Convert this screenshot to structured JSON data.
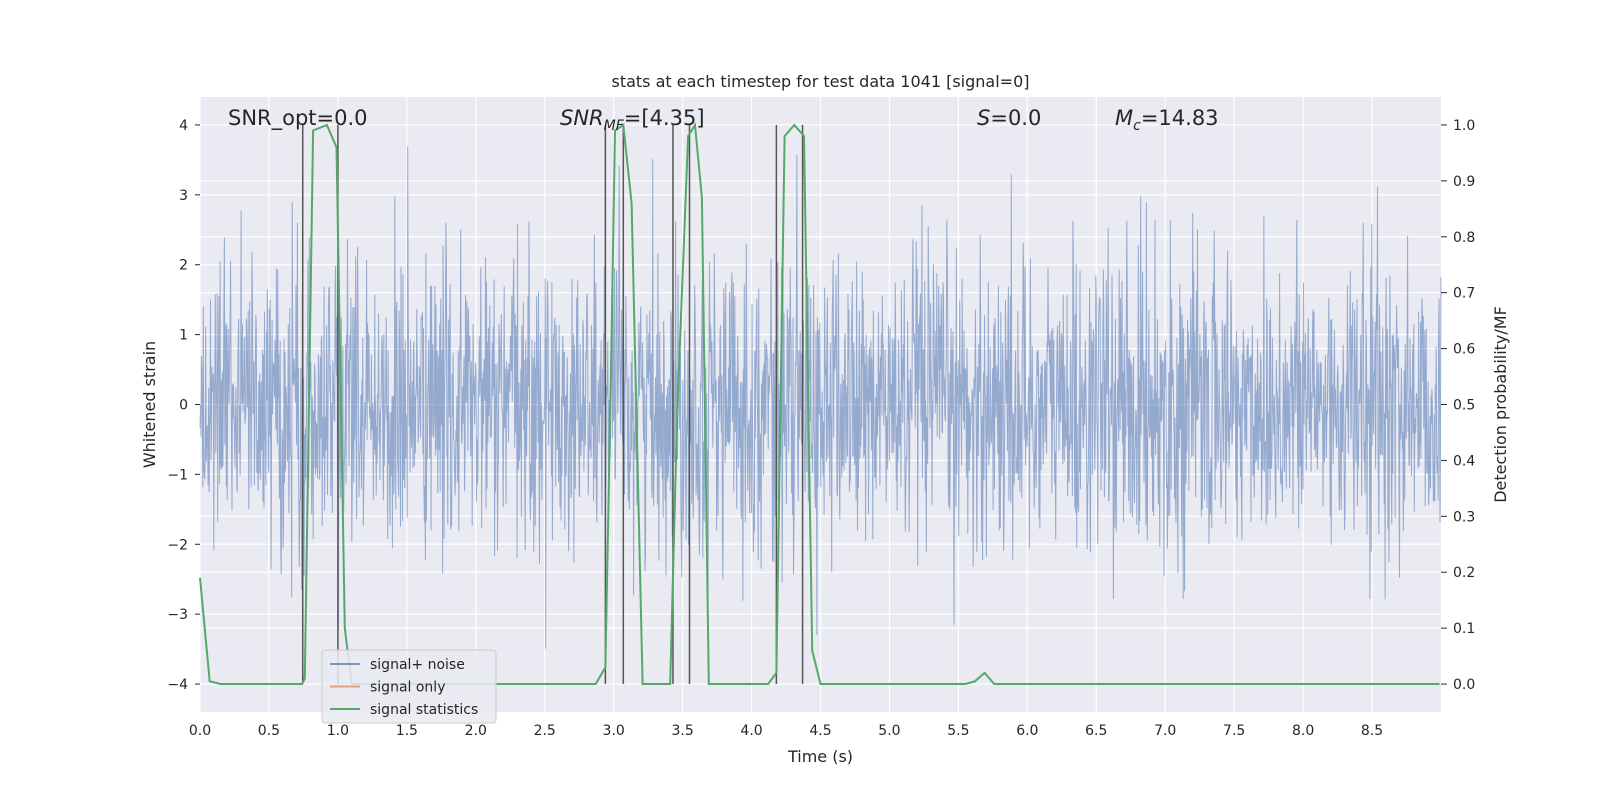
{
  "chart_data": {
    "type": "line",
    "title": "stats at each timestep for test data 1041 [signal=0]",
    "xlabel": "Time (s)",
    "ylabel": "Whitened strain",
    "y2label": "Detection probability/MF",
    "xlim": [
      0.0,
      9.0
    ],
    "ylim": [
      -4.4,
      4.4
    ],
    "y2lim": [
      -0.05,
      1.05
    ],
    "xticks": [
      "0.0",
      "0.5",
      "1.0",
      "1.5",
      "2.0",
      "2.5",
      "3.0",
      "3.5",
      "4.0",
      "4.5",
      "5.0",
      "5.5",
      "6.0",
      "6.5",
      "7.0",
      "7.5",
      "8.0",
      "8.5"
    ],
    "yticks": [
      "4",
      "3",
      "2",
      "1",
      "0",
      "−1",
      "−2",
      "−3",
      "−4"
    ],
    "y2ticks": [
      "1.0",
      "0.9",
      "0.8",
      "0.7",
      "0.6",
      "0.5",
      "0.4",
      "0.3",
      "0.2",
      "0.1",
      "0.0"
    ],
    "grid": true,
    "legend_position": "lower-left",
    "annotations": {
      "snr_opt": "SNR_opt=0.0",
      "snr_mf_italic": "SNR",
      "snr_mf_sub": "MF",
      "snr_mf_value": "=[4.35]",
      "s_italic": "S",
      "s_value": "=0.0",
      "mc_italic": "M",
      "mc_sub": "c",
      "mc_value": "=14.83"
    },
    "series": [
      {
        "name": "signal+ noise",
        "color": "#4c72b0",
        "note_envelope": {
          "typical_amplitude": 1.6,
          "peak_amplitude": 4.0
        },
        "points": "dense noise"
      },
      {
        "name": "signal only",
        "color": "#dd8452",
        "values": []
      },
      {
        "name": "signal statistics",
        "color": "#55a868",
        "axis": "right",
        "x": [
          0.0,
          0.07,
          0.15,
          0.74,
          0.76,
          0.82,
          0.92,
          0.99,
          1.05,
          1.1,
          2.87,
          2.94,
          2.98,
          3.01,
          3.07,
          3.13,
          3.21,
          3.41,
          3.46,
          3.54,
          3.59,
          3.64,
          3.69,
          3.75,
          4.12,
          4.18,
          4.24,
          4.31,
          4.38,
          4.44,
          4.5,
          5.55,
          5.62,
          5.69,
          5.76,
          8.99
        ],
        "values": [
          0.19,
          0.005,
          0.0,
          0.0,
          0.01,
          0.99,
          1.0,
          0.96,
          0.1,
          0.0,
          0.0,
          0.03,
          0.55,
          0.99,
          1.0,
          0.86,
          0.0,
          0.0,
          0.48,
          0.98,
          1.0,
          0.87,
          0.0,
          0.0,
          0.0,
          0.02,
          0.98,
          1.0,
          0.98,
          0.06,
          0.0,
          0.0,
          0.005,
          0.02,
          0.0,
          0.0
        ]
      }
    ],
    "vertical_markers": [
      {
        "x": 0.745,
        "y2_top": 1.0
      },
      {
        "x": 1.0,
        "y2_top": 1.0
      },
      {
        "x": 2.94,
        "y2_top": 1.0
      },
      {
        "x": 3.07,
        "y2_top": 1.0
      },
      {
        "x": 3.43,
        "y2_top": 1.0
      },
      {
        "x": 3.55,
        "y2_top": 1.0
      },
      {
        "x": 4.18,
        "y2_top": 1.0
      },
      {
        "x": 4.37,
        "y2_top": 1.0
      }
    ]
  }
}
